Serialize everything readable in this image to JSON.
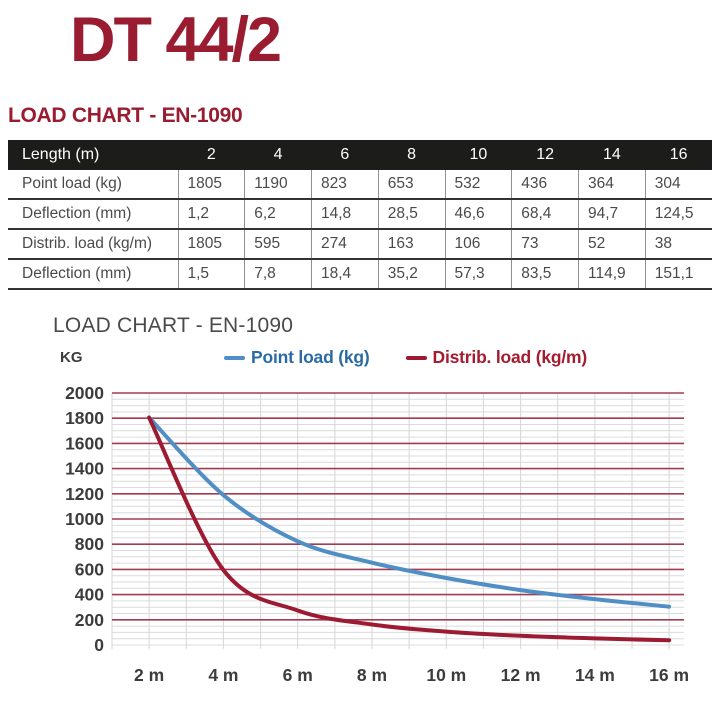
{
  "page": {
    "title": "DT 44/2",
    "accent_color": "#9a1c31"
  },
  "table_section": {
    "heading": "LOAD CHART - EN-1090",
    "table": {
      "header": [
        "Length (m)",
        "2",
        "4",
        "6",
        "8",
        "10",
        "12",
        "14",
        "16"
      ],
      "rows": [
        {
          "label": "Point load (kg)",
          "values": [
            "1805",
            "1190",
            "823",
            "653",
            "532",
            "436",
            "364",
            "304"
          ]
        },
        {
          "label": "Deflection (mm)",
          "values": [
            "1,2",
            "6,2",
            "14,8",
            "28,5",
            "46,6",
            "68,4",
            "94,7",
            "124,5"
          ]
        },
        {
          "label": "Distrib. load (kg/m)",
          "values": [
            "1805",
            "595",
            "274",
            "163",
            "106",
            "73",
            "52",
            "38"
          ]
        },
        {
          "label": "Deflection (mm)",
          "values": [
            "1,5",
            "7,8",
            "18,4",
            "35,2",
            "57,3",
            "83,5",
            "114,9",
            "151,1"
          ]
        }
      ]
    }
  },
  "chart_section": {
    "title": "LOAD CHART - EN-1090",
    "y_axis_unit": "KG",
    "legend": [
      {
        "label": "Point load (kg)",
        "text_color": "#2b6ba5",
        "line_color": "#4f8fc6"
      },
      {
        "label": "Distrib. load (kg/m)",
        "text_color": "#a31c30",
        "line_color": "#9c1b33"
      }
    ]
  },
  "chart_data": {
    "type": "line",
    "title": "LOAD CHART - EN-1090",
    "ylabel": "KG",
    "x": [
      2,
      4,
      6,
      8,
      10,
      12,
      14,
      16
    ],
    "x_tick_labels": [
      "2 m",
      "4 m",
      "6 m",
      "8 m",
      "10 m",
      "12 m",
      "14 m",
      "16 m"
    ],
    "series": [
      {
        "name": "Point load (kg)",
        "color": "#4f8fc6",
        "values": [
          1805,
          1190,
          823,
          653,
          532,
          436,
          364,
          304
        ]
      },
      {
        "name": "Distrib. load (kg/m)",
        "color": "#9c1b33",
        "values": [
          1805,
          595,
          274,
          163,
          106,
          73,
          52,
          38
        ]
      }
    ],
    "ylim": [
      0,
      2000
    ],
    "y_major_step": 200,
    "y_minor_step": 50,
    "xlim": [
      1,
      16.4
    ],
    "x_minor_step": 1,
    "grid": "on",
    "grid_major_color": "#a33b51",
    "grid_minor_color": "#dcdcdc",
    "grid_vertical_color": "#d6d6d6",
    "tick_label_color": "#3c3c3c",
    "legend_position": "top"
  }
}
